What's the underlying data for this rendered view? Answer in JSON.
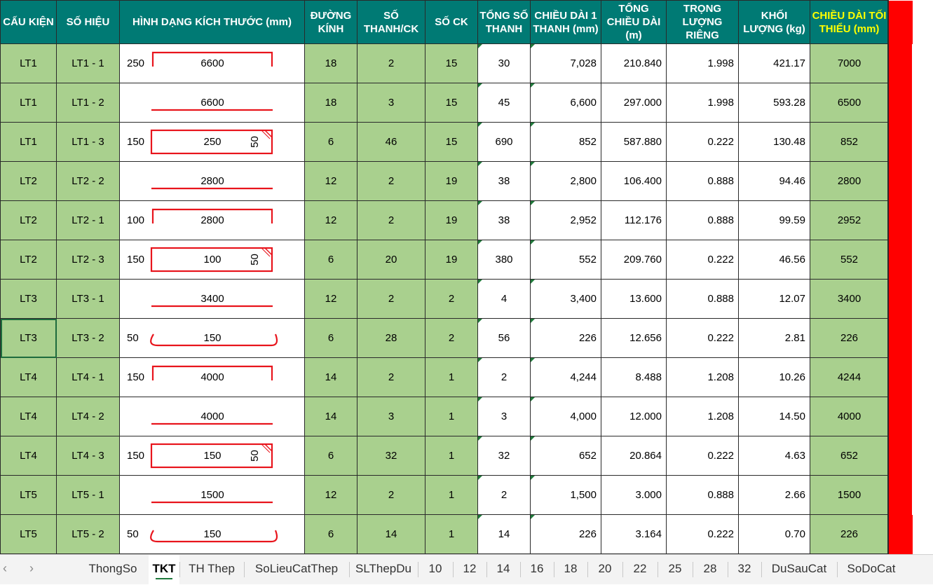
{
  "headers": {
    "cau_kien": "CẤU KIỆN",
    "so_hieu": "SỐ HIỆU",
    "hinh_dang": "HÌNH DẠNG KÍCH THƯỚC (mm)",
    "duong_kinh": "ĐƯỜNG KÍNH",
    "so_thanh_ck": "SỐ THANH/CK",
    "so_ck": "SỐ CK",
    "tong_so_thanh": "TỔNG SỐ THANH",
    "chieu_dai_1_thanh": "CHIỀU DÀI 1 THANH (mm)",
    "tong_chieu_dai": "TỔNG CHIỀU DÀI (m)",
    "trong_luong_rieng": "TRỌNG LƯỢNG RIÊNG",
    "khoi_luong": "KHỐI LƯỢNG (kg)",
    "chieu_dai_toi_thieu": "CHIỀU DÀI TỐI THIỂU (mm)"
  },
  "colors": {
    "header_bg": "#007a74",
    "header_text": "#ffffff",
    "highlight_header_text": "#ffff00",
    "green_cell": "#a9d08e",
    "shape_line": "#e8141c",
    "red_bar": "#ff0000",
    "tab_underline": "#1e7a3c"
  },
  "rows": [
    {
      "cau_kien": "LT1",
      "so_hieu": "LT1 - 1",
      "shape": "open-top",
      "dim_left": "250",
      "dim_main": "6600",
      "dim_side": "",
      "duong_kinh": "18",
      "so_thanh_ck": "2",
      "so_ck": "15",
      "tong_so_thanh": "30",
      "chieu_dai_1_thanh": "7,028",
      "tong_chieu_dai": "210.840",
      "trong_luong_rieng": "1.998",
      "khoi_luong": "421.17",
      "chieu_dai_toi_thieu": "7000"
    },
    {
      "cau_kien": "LT1",
      "so_hieu": "LT1 - 2",
      "shape": "straight",
      "dim_left": "",
      "dim_main": "6600",
      "dim_side": "",
      "duong_kinh": "18",
      "so_thanh_ck": "3",
      "so_ck": "15",
      "tong_so_thanh": "45",
      "chieu_dai_1_thanh": "6,600",
      "tong_chieu_dai": "297.000",
      "trong_luong_rieng": "1.998",
      "khoi_luong": "593.28",
      "chieu_dai_toi_thieu": "6500"
    },
    {
      "cau_kien": "LT1",
      "so_hieu": "LT1 - 3",
      "shape": "stirrup",
      "dim_left": "150",
      "dim_main": "250",
      "dim_side": "50",
      "duong_kinh": "6",
      "so_thanh_ck": "46",
      "so_ck": "15",
      "tong_so_thanh": "690",
      "chieu_dai_1_thanh": "852",
      "tong_chieu_dai": "587.880",
      "trong_luong_rieng": "0.222",
      "khoi_luong": "130.48",
      "chieu_dai_toi_thieu": "852"
    },
    {
      "cau_kien": "LT2",
      "so_hieu": "LT2 - 2",
      "shape": "straight",
      "dim_left": "",
      "dim_main": "2800",
      "dim_side": "",
      "duong_kinh": "12",
      "so_thanh_ck": "2",
      "so_ck": "19",
      "tong_so_thanh": "38",
      "chieu_dai_1_thanh": "2,800",
      "tong_chieu_dai": "106.400",
      "trong_luong_rieng": "0.888",
      "khoi_luong": "94.46",
      "chieu_dai_toi_thieu": "2800"
    },
    {
      "cau_kien": "LT2",
      "so_hieu": "LT2 - 1",
      "shape": "open-top",
      "dim_left": "100",
      "dim_main": "2800",
      "dim_side": "",
      "duong_kinh": "12",
      "so_thanh_ck": "2",
      "so_ck": "19",
      "tong_so_thanh": "38",
      "chieu_dai_1_thanh": "2,952",
      "tong_chieu_dai": "112.176",
      "trong_luong_rieng": "0.888",
      "khoi_luong": "99.59",
      "chieu_dai_toi_thieu": "2952"
    },
    {
      "cau_kien": "LT2",
      "so_hieu": "LT2 - 3",
      "shape": "stirrup",
      "dim_left": "150",
      "dim_main": "100",
      "dim_side": "50",
      "duong_kinh": "6",
      "so_thanh_ck": "20",
      "so_ck": "19",
      "tong_so_thanh": "380",
      "chieu_dai_1_thanh": "552",
      "tong_chieu_dai": "209.760",
      "trong_luong_rieng": "0.222",
      "khoi_luong": "46.56",
      "chieu_dai_toi_thieu": "552"
    },
    {
      "cau_kien": "LT3",
      "so_hieu": "LT3 - 1",
      "shape": "straight",
      "dim_left": "",
      "dim_main": "3400",
      "dim_side": "",
      "duong_kinh": "12",
      "so_thanh_ck": "2",
      "so_ck": "2",
      "tong_so_thanh": "4",
      "chieu_dai_1_thanh": "3,400",
      "tong_chieu_dai": "13.600",
      "trong_luong_rieng": "0.888",
      "khoi_luong": "12.07",
      "chieu_dai_toi_thieu": "3400"
    },
    {
      "cau_kien": "LT3",
      "so_hieu": "LT3 - 2",
      "shape": "hook",
      "dim_left": "50",
      "dim_main": "150",
      "dim_side": "",
      "duong_kinh": "6",
      "so_thanh_ck": "28",
      "so_ck": "2",
      "tong_so_thanh": "56",
      "chieu_dai_1_thanh": "226",
      "tong_chieu_dai": "12.656",
      "trong_luong_rieng": "0.222",
      "khoi_luong": "2.81",
      "chieu_dai_toi_thieu": "226"
    },
    {
      "cau_kien": "LT4",
      "so_hieu": "LT4 - 1",
      "shape": "open-top",
      "dim_left": "150",
      "dim_main": "4000",
      "dim_side": "",
      "duong_kinh": "14",
      "so_thanh_ck": "2",
      "so_ck": "1",
      "tong_so_thanh": "2",
      "chieu_dai_1_thanh": "4,244",
      "tong_chieu_dai": "8.488",
      "trong_luong_rieng": "1.208",
      "khoi_luong": "10.26",
      "chieu_dai_toi_thieu": "4244"
    },
    {
      "cau_kien": "LT4",
      "so_hieu": "LT4 - 2",
      "shape": "straight",
      "dim_left": "",
      "dim_main": "4000",
      "dim_side": "",
      "duong_kinh": "14",
      "so_thanh_ck": "3",
      "so_ck": "1",
      "tong_so_thanh": "3",
      "chieu_dai_1_thanh": "4,000",
      "tong_chieu_dai": "12.000",
      "trong_luong_rieng": "1.208",
      "khoi_luong": "14.50",
      "chieu_dai_toi_thieu": "4000"
    },
    {
      "cau_kien": "LT4",
      "so_hieu": "LT4 - 3",
      "shape": "stirrup",
      "dim_left": "150",
      "dim_main": "150",
      "dim_side": "50",
      "duong_kinh": "6",
      "so_thanh_ck": "32",
      "so_ck": "1",
      "tong_so_thanh": "32",
      "chieu_dai_1_thanh": "652",
      "tong_chieu_dai": "20.864",
      "trong_luong_rieng": "0.222",
      "khoi_luong": "4.63",
      "chieu_dai_toi_thieu": "652"
    },
    {
      "cau_kien": "LT5",
      "so_hieu": "LT5 - 1",
      "shape": "straight",
      "dim_left": "",
      "dim_main": "1500",
      "dim_side": "",
      "duong_kinh": "12",
      "so_thanh_ck": "2",
      "so_ck": "1",
      "tong_so_thanh": "2",
      "chieu_dai_1_thanh": "1,500",
      "tong_chieu_dai": "3.000",
      "trong_luong_rieng": "0.888",
      "khoi_luong": "2.66",
      "chieu_dai_toi_thieu": "1500"
    },
    {
      "cau_kien": "LT5",
      "so_hieu": "LT5 - 2",
      "shape": "hook",
      "dim_left": "50",
      "dim_main": "150",
      "dim_side": "",
      "duong_kinh": "6",
      "so_thanh_ck": "14",
      "so_ck": "1",
      "tong_so_thanh": "14",
      "chieu_dai_1_thanh": "226",
      "tong_chieu_dai": "3.164",
      "trong_luong_rieng": "0.222",
      "khoi_luong": "0.70",
      "chieu_dai_toi_thieu": "226"
    }
  ],
  "tabs": {
    "prev_icon": "chevron-left-icon",
    "next_icon": "chevron-right-icon",
    "active": "TKT",
    "items": [
      "ThongSo",
      "TKT",
      "TH Thep",
      "SoLieuCatThep",
      "SLThepDu",
      "10",
      "12",
      "14",
      "16",
      "18",
      "20",
      "22",
      "25",
      "28",
      "32",
      "DuSauCat",
      "SoDoCat"
    ]
  }
}
